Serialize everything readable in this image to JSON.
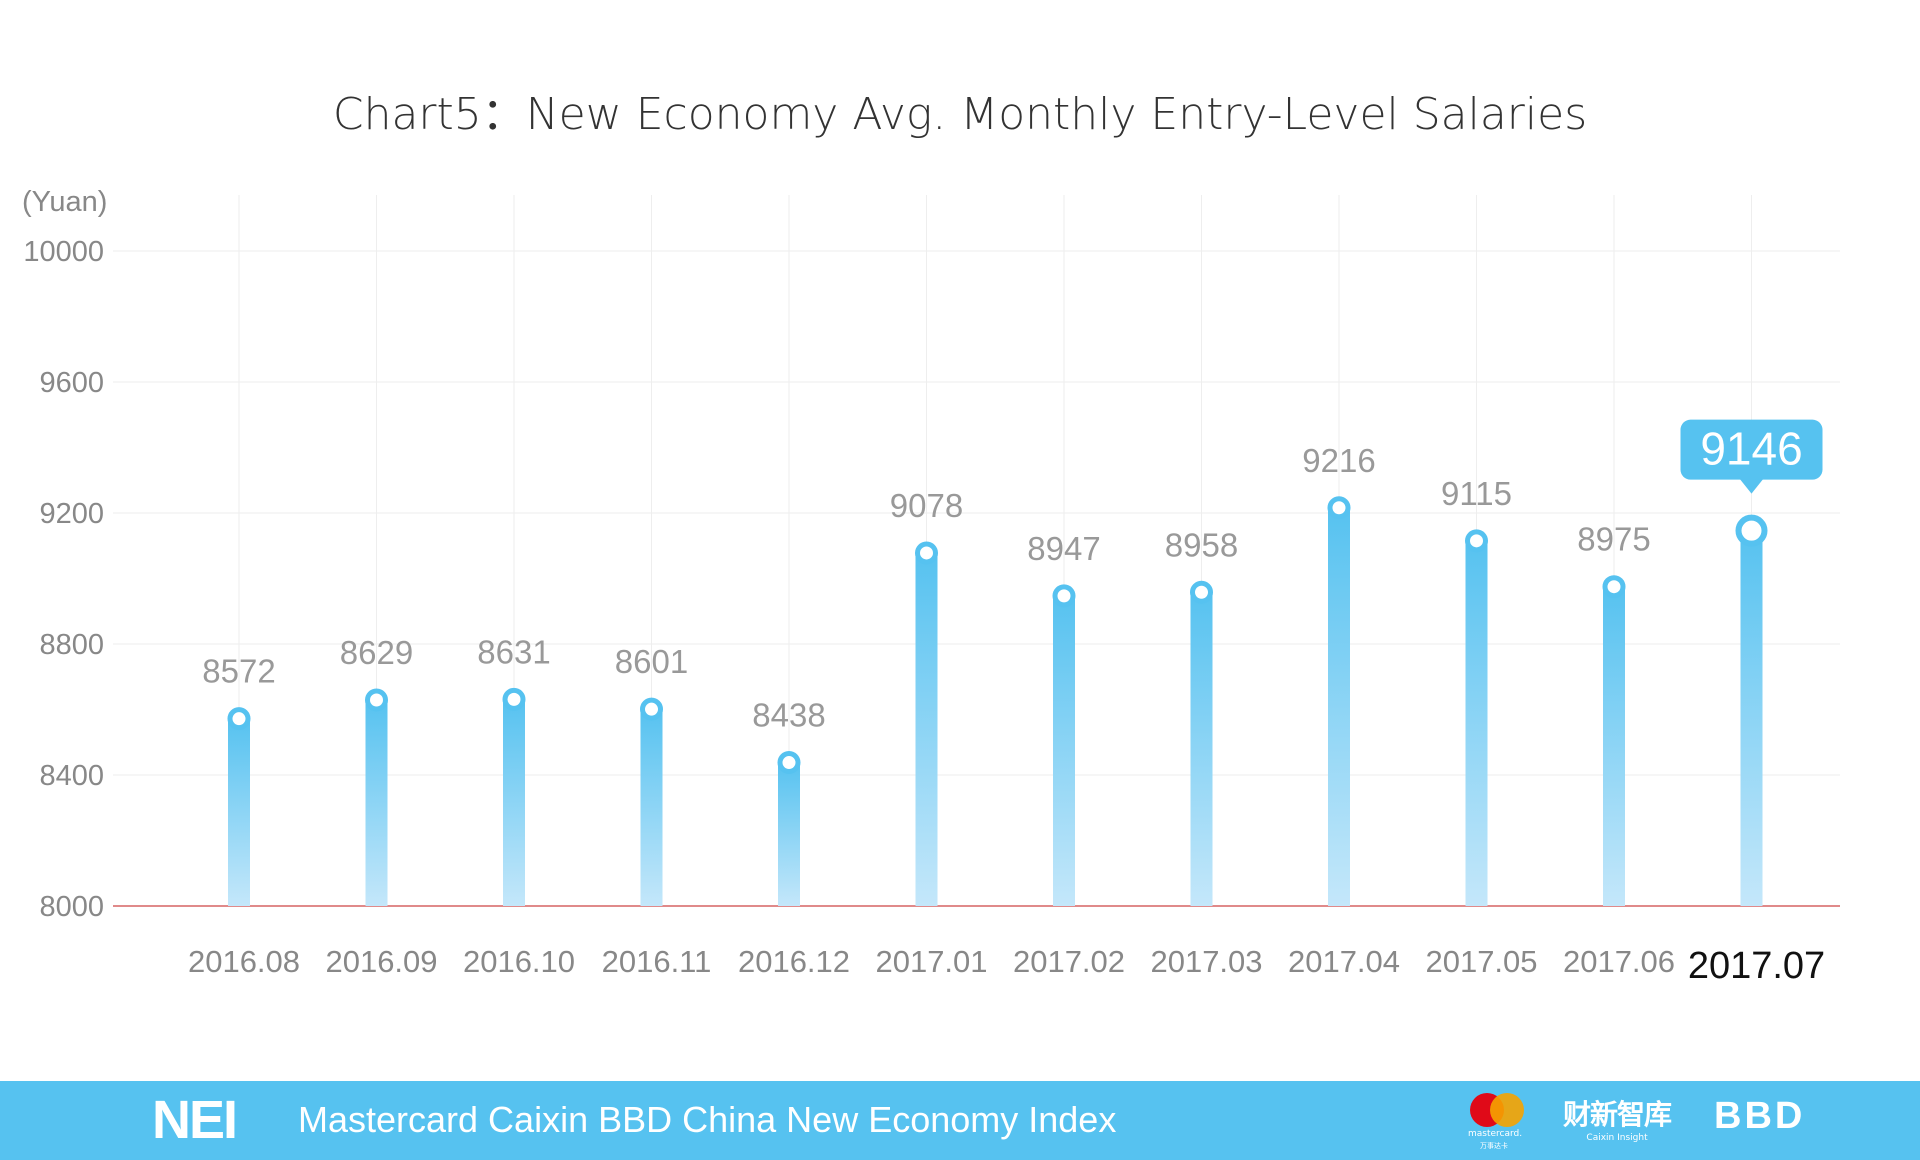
{
  "chart_data": {
    "type": "bar",
    "title": "Chart5：New Economy Avg. Monthly Entry-Level Salaries",
    "ylabel": "(Yuan)",
    "xlabel": "",
    "ylim": [
      8000,
      10000
    ],
    "yticks": [
      "8000",
      "8400",
      "8800",
      "9200",
      "9600",
      "10000"
    ],
    "grid": true,
    "categories": [
      "2016.08",
      "2016.09",
      "2016.10",
      "2016.11",
      "2016.12",
      "2017.01",
      "2017.02",
      "2017.03",
      "2017.04",
      "2017.05",
      "2017.06",
      "2017.07"
    ],
    "values": [
      8572,
      8629,
      8631,
      8601,
      8438,
      9078,
      8947,
      8958,
      9216,
      9115,
      8975,
      9146
    ],
    "highlight": "2017.07",
    "colors": {
      "bar": "#56c2f0",
      "bar_light": "#c4e7fa",
      "baseline": "#e08a8a",
      "grid": "#eeeeee",
      "text": "#888888"
    }
  },
  "footer": {
    "brand": "NEI",
    "text": "Mastercard Caixin BBD China New Economy Index",
    "logos": {
      "mastercard": "mastercard.",
      "mastercard_cn": "万事达卡",
      "caixin": "财新智库",
      "caixin_en": "Caixin Insight",
      "bbd": "BBD"
    },
    "color": "#56c2f0"
  }
}
